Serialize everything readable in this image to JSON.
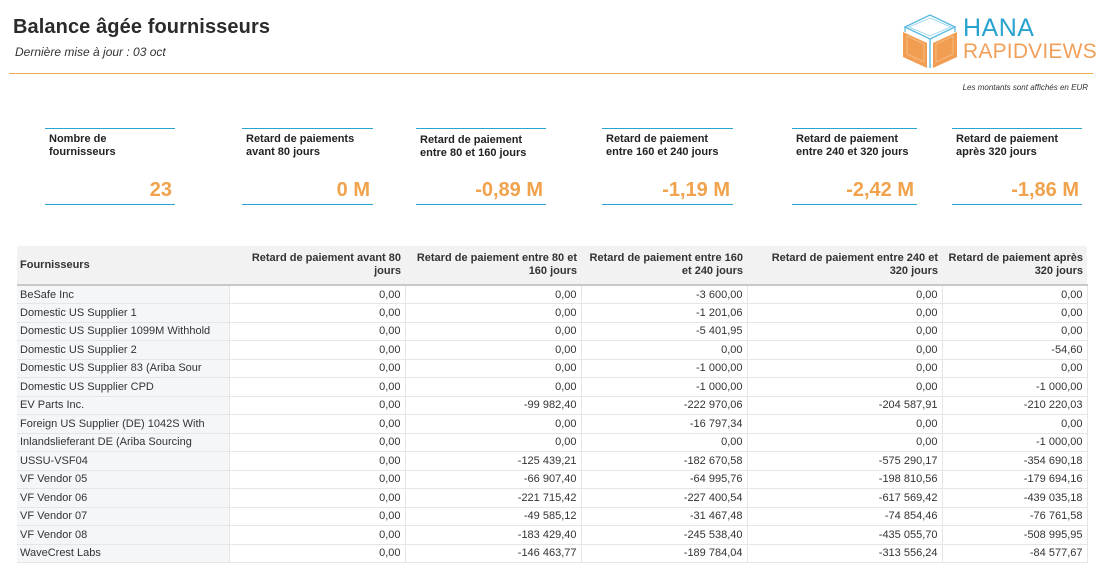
{
  "header": {
    "title": "Balance âgée fournisseurs",
    "subtitle": "Dernière mise à jour : 03 oct",
    "logo_line1": "HANA",
    "logo_line2": "RAPIDVIEWS",
    "currency_note": "Les montants sont affichés en EUR"
  },
  "colors": {
    "accent_orange": "#f0a24c",
    "accent_blue": "#2aa3cf",
    "header_rule": "#e8a94f"
  },
  "kpis": [
    {
      "label": "Nombre de fournisseurs",
      "value": "23"
    },
    {
      "label": "Retard de paiements avant  80 jours",
      "value": "0 M"
    },
    {
      "label": "Retard de paiement entre 80 et 160 jours",
      "value": "-0,89 M"
    },
    {
      "label": "Retard de paiement entre 160 et 240 jours",
      "value": "-1,19 M"
    },
    {
      "label": "Retard de paiement entre 240 et 320 jours",
      "value": "-2,42 M"
    },
    {
      "label": "Retard de paiement après 320 jours",
      "value": "-1,86 M"
    }
  ],
  "table": {
    "columns": [
      "Fournisseurs",
      "Retard de paiement avant 80 jours",
      "Retard de paiement entre 80 et 160 jours",
      "Retard de paiement entre 160 et 240 jours",
      "Retard de paiement entre 240 et 320 jours",
      "Retard de paiement après 320 jours"
    ],
    "rows": [
      [
        "BeSafe Inc",
        "0,00",
        "0,00",
        "-3 600,00",
        "0,00",
        "0,00"
      ],
      [
        "Domestic US Supplier 1",
        "0,00",
        "0,00",
        "-1 201,06",
        "0,00",
        "0,00"
      ],
      [
        "Domestic US Supplier 1099M Withhold",
        "0,00",
        "0,00",
        "-5 401,95",
        "0,00",
        "0,00"
      ],
      [
        "Domestic US Supplier 2",
        "0,00",
        "0,00",
        "0,00",
        "0,00",
        "-54,60"
      ],
      [
        "Domestic US Supplier 83 (Ariba Sour",
        "0,00",
        "0,00",
        "-1 000,00",
        "0,00",
        "0,00"
      ],
      [
        "Domestic US Supplier CPD",
        "0,00",
        "0,00",
        "-1 000,00",
        "0,00",
        "-1 000,00"
      ],
      [
        "EV Parts Inc.",
        "0,00",
        "-99 982,40",
        "-222 970,06",
        "-204 587,91",
        "-210 220,03"
      ],
      [
        "Foreign US Supplier (DE) 1042S With",
        "0,00",
        "0,00",
        "-16 797,34",
        "0,00",
        "0,00"
      ],
      [
        "Inlandslieferant DE (Ariba Sourcing",
        "0,00",
        "0,00",
        "0,00",
        "0,00",
        "-1 000,00"
      ],
      [
        "USSU-VSF04",
        "0,00",
        "-125 439,21",
        "-182 670,58",
        "-575 290,17",
        "-354 690,18"
      ],
      [
        "VF Vendor 05",
        "0,00",
        "-66 907,40",
        "-64 995,76",
        "-198 810,56",
        "-179 694,16"
      ],
      [
        "VF Vendor 06",
        "0,00",
        "-221 715,42",
        "-227 400,54",
        "-617 569,42",
        "-439 035,18"
      ],
      [
        "VF Vendor 07",
        "0,00",
        "-49 585,12",
        "-31 467,48",
        "-74 854,46",
        "-76 761,58"
      ],
      [
        "VF Vendor 08",
        "0,00",
        "-183 429,40",
        "-245 538,40",
        "-435 055,70",
        "-508 995,95"
      ],
      [
        "WaveCrest Labs",
        "0,00",
        "-146 463,77",
        "-189 784,04",
        "-313 556,24",
        "-84 577,67"
      ]
    ]
  }
}
